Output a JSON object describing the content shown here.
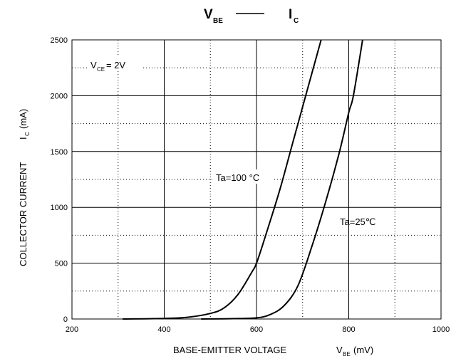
{
  "chart_data": {
    "type": "line",
    "title": {
      "main_1": "V",
      "sub_1": "BE",
      "main_2": "I",
      "sub_2": "C"
    },
    "xlabel": {
      "text": "BASE-EMITTER VOLTAGE",
      "var_main": "V",
      "var_sub": "BE",
      "var_unit": "(mV)"
    },
    "ylabel": {
      "text": "COLLECTOR CURRENT",
      "var_main": "I",
      "var_sub": "C",
      "var_unit": "(mA)"
    },
    "xlim": [
      200,
      1000
    ],
    "ylim": [
      0,
      2500
    ],
    "x_ticks": [
      "200",
      "400",
      "600",
      "800",
      "1000"
    ],
    "y_ticks": [
      "0",
      "500",
      "1000",
      "1500",
      "2000",
      "2500"
    ],
    "grid": {
      "major": true,
      "minor_dotted": true
    },
    "condition": {
      "main": "V",
      "sub": "CE",
      "rest": "= 2V"
    },
    "series": [
      {
        "name": "Ta=100 °C",
        "x": [
          310,
          400,
          450,
          500,
          530,
          560,
          590,
          600,
          620,
          650,
          680,
          710,
          740
        ],
        "y": [
          0,
          5,
          15,
          50,
          100,
          220,
          420,
          500,
          750,
          1150,
          1600,
          2050,
          2500
        ]
      },
      {
        "name": "Ta=25℃",
        "x": [
          480,
          550,
          600,
          630,
          660,
          690,
          720,
          750,
          780,
          800,
          810,
          830
        ],
        "y": [
          0,
          3,
          10,
          40,
          120,
          300,
          650,
          1050,
          1500,
          1850,
          2000,
          2500
        ]
      }
    ]
  }
}
